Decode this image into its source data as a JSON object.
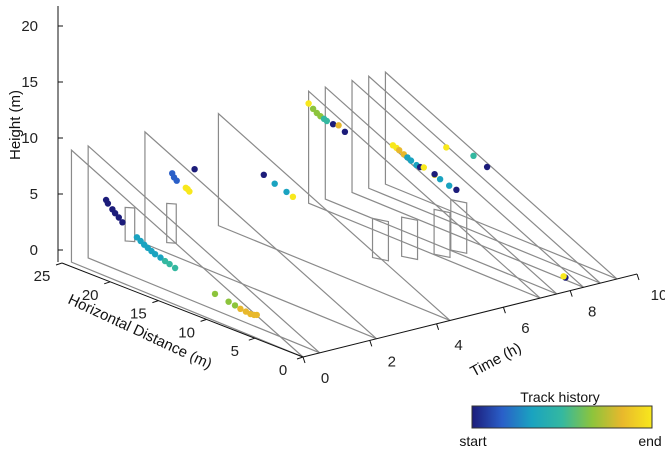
{
  "chart_data": {
    "type": "scatter",
    "xlabel": "Horizontal Distance (m)",
    "ylabel": "Time (h)",
    "zlabel": "Height (m)",
    "xlim": [
      0,
      25
    ],
    "ylim": [
      0,
      10
    ],
    "zlim": [
      0,
      20
    ],
    "x_ticks": [
      0,
      5,
      10,
      15,
      20,
      25
    ],
    "y_ticks": [
      0,
      2,
      4,
      6,
      8,
      10
    ],
    "z_ticks": [
      0,
      5,
      10,
      15,
      20
    ],
    "colorbar": {
      "title": "Track history",
      "min_label": "start",
      "max_label": "end",
      "colors": [
        "#1c1c7a",
        "#2a5fc8",
        "#1aa3c0",
        "#34b8a0",
        "#8cc43c",
        "#e8b82c",
        "#f8e81c"
      ]
    },
    "tracks": [
      {
        "color": "#1c1c7a",
        "points": [
          [
            25.0,
            0.9,
            10.1
          ],
          [
            24.8,
            0.9,
            9.6
          ],
          [
            24.3,
            0.9,
            8.9
          ],
          [
            24.0,
            0.9,
            8.4
          ],
          [
            23.6,
            0.9,
            7.9
          ],
          [
            23.2,
            0.9,
            7.3
          ]
        ]
      },
      {
        "color": "#1aa3c0",
        "points": [
          [
            21.6,
            0.9,
            5.7
          ],
          [
            21.2,
            0.9,
            5.3
          ],
          [
            20.8,
            0.9,
            4.9
          ],
          [
            20.4,
            0.9,
            4.6
          ],
          [
            20.0,
            0.9,
            4.3
          ],
          [
            19.6,
            0.9,
            4.0
          ],
          [
            19.0,
            0.9,
            3.8
          ]
        ]
      },
      {
        "color": "#34b8a0",
        "points": [
          [
            18.5,
            0.9,
            3.5
          ],
          [
            18.0,
            0.9,
            3.3
          ],
          [
            17.4,
            0.9,
            3.0
          ]
        ]
      },
      {
        "color": "#8cc43c",
        "points": [
          [
            13.0,
            0.9,
            1.3
          ],
          [
            11.5,
            0.9,
            0.9
          ],
          [
            10.8,
            0.9,
            0.7
          ]
        ]
      },
      {
        "color": "#e8b82c",
        "points": [
          [
            10.2,
            0.9,
            0.5
          ],
          [
            9.6,
            0.9,
            0.4
          ],
          [
            9.1,
            0.9,
            0.3
          ],
          [
            8.7,
            0.9,
            0.4
          ],
          [
            8.4,
            0.9,
            0.6
          ]
        ]
      },
      {
        "color": "#2a5fc8",
        "points": [
          [
            22.5,
            2.2,
            14.6
          ],
          [
            22.3,
            2.2,
            14.0
          ],
          [
            22.0,
            2.2,
            13.6
          ]
        ]
      },
      {
        "color": "#f8e81c",
        "points": [
          [
            21.0,
            2.2,
            13.0
          ],
          [
            20.6,
            2.2,
            12.6
          ],
          [
            20.8,
            2.2,
            12.9
          ]
        ]
      },
      {
        "color": "#1c1c7a",
        "points": [
          [
            21.5,
            2.6,
            15.4
          ],
          [
            20.5,
            4.4,
            12.4
          ]
        ]
      },
      {
        "color": "#1aa3c0",
        "points": [
          [
            19.3,
            4.4,
            11.6
          ],
          [
            18.0,
            4.4,
            11.0
          ]
        ]
      },
      {
        "color": "#f8e81c",
        "points": [
          [
            17.3,
            4.4,
            10.6
          ]
        ]
      },
      {
        "color": "#8cc43c",
        "points": [
          [
            25.0,
            7.1,
            17.2
          ],
          [
            24.6,
            7.1,
            16.7
          ],
          [
            24.2,
            7.1,
            16.4
          ]
        ]
      },
      {
        "color": "#34b8a0",
        "points": [
          [
            23.8,
            7.1,
            16.2
          ],
          [
            23.5,
            7.1,
            16.0
          ]
        ]
      },
      {
        "color": "#1c1c7a",
        "points": [
          [
            22.8,
            7.1,
            15.9
          ],
          [
            21.5,
            7.1,
            15.4
          ]
        ]
      },
      {
        "color": "#f8e81c",
        "points": [
          [
            25.5,
            7.1,
            17.8
          ]
        ]
      },
      {
        "color": "#e8b82c",
        "points": [
          [
            22.2,
            7.1,
            16.1
          ]
        ]
      },
      {
        "color": "#f8e81c",
        "points": [
          [
            21.0,
            8.4,
            11.4
          ],
          [
            20.6,
            8.4,
            11.2
          ]
        ]
      },
      {
        "color": "#e8b82c",
        "points": [
          [
            20.3,
            8.4,
            11.0
          ],
          [
            19.8,
            8.4,
            10.6
          ]
        ]
      },
      {
        "color": "#1aa3c0",
        "points": [
          [
            19.4,
            8.4,
            10.3
          ],
          [
            19.0,
            8.4,
            10.0
          ],
          [
            18.4,
            8.4,
            9.6
          ]
        ]
      },
      {
        "color": "#1c1c7a",
        "points": [
          [
            18.0,
            8.4,
            9.5
          ]
        ]
      },
      {
        "color": "#f8e81c",
        "points": [
          [
            17.6,
            8.4,
            9.7
          ],
          [
            16.4,
            8.4,
            9.2
          ]
        ]
      },
      {
        "color": "#1aa3c0",
        "points": [
          [
            15.8,
            8.4,
            8.8
          ],
          [
            14.8,
            8.4,
            8.3
          ]
        ]
      },
      {
        "color": "#1c1c7a",
        "points": [
          [
            14.0,
            8.4,
            8.1
          ],
          [
            16.4,
            8.4,
            9.3
          ]
        ]
      },
      {
        "color": "#f8e81c",
        "points": [
          [
            18.8,
            9.4,
            11.0
          ]
        ]
      },
      {
        "color": "#34b8a0",
        "points": [
          [
            15.8,
            9.4,
            11.5
          ]
        ]
      },
      {
        "color": "#1c1c7a",
        "points": [
          [
            14.3,
            9.4,
            10.5
          ]
        ]
      },
      {
        "color": "#1c1c7a",
        "points": [
          [
            2.0,
            8.4,
            0.4
          ]
        ]
      },
      {
        "color": "#f8e81c",
        "points": [
          [
            2.2,
            8.4,
            0.5
          ]
        ]
      }
    ]
  }
}
